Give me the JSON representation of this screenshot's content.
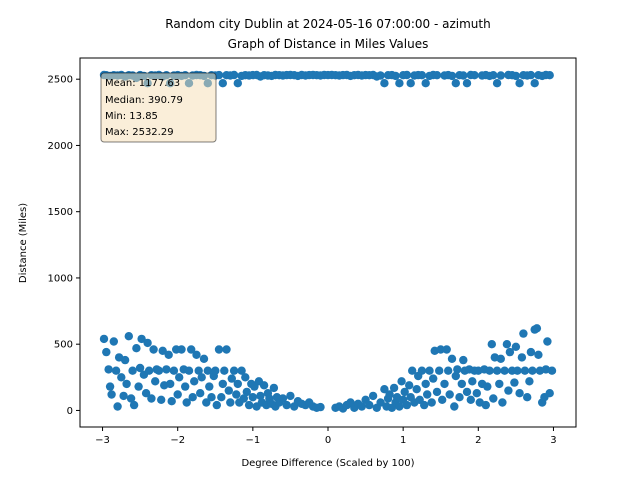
{
  "chart_data": {
    "type": "scatter",
    "title_line1": "Random city Dublin at 2024-05-16 07:00:00  - azimuth",
    "title_line2": "Graph of Distance in Miles Values",
    "xlabel": "Degree Difference (Scaled by 100)",
    "ylabel": "Distance (Miles)",
    "xlim": [
      -3.3,
      3.3
    ],
    "ylim": [
      -125,
      2660
    ],
    "xticks": [
      -3,
      -2,
      -1,
      0,
      1,
      2,
      3
    ],
    "xtick_labels": [
      "−3",
      "−2",
      "−1",
      "0",
      "1",
      "2",
      "3"
    ],
    "yticks": [
      0,
      500,
      1000,
      1500,
      2000,
      2500
    ],
    "ytick_labels": [
      "0",
      "500",
      "1000",
      "1500",
      "2000",
      "2500"
    ],
    "grid": false,
    "marker_color": "#1f77b4",
    "stats": {
      "mean": "Mean: 1177.63",
      "median": "Median: 390.79",
      "min": "Min: 13.85",
      "max": "Max: 2532.29"
    },
    "points": [
      [
        -2.98,
        2532
      ],
      [
        -2.95,
        2530
      ],
      [
        -2.9,
        2525
      ],
      [
        -2.85,
        2530
      ],
      [
        -2.8,
        2528
      ],
      [
        -2.75,
        2532
      ],
      [
        -2.7,
        2520
      ],
      [
        -2.65,
        2530
      ],
      [
        -2.6,
        2528
      ],
      [
        -2.55,
        2510
      ],
      [
        -2.5,
        2531
      ],
      [
        -2.45,
        2525
      ],
      [
        -2.4,
        2470
      ],
      [
        -2.35,
        2530
      ],
      [
        -2.3,
        2528
      ],
      [
        -2.25,
        2532
      ],
      [
        -2.2,
        2520
      ],
      [
        -2.15,
        2530
      ],
      [
        -2.1,
        2470
      ],
      [
        -2.05,
        2528
      ],
      [
        -2.0,
        2531
      ],
      [
        -1.95,
        2525
      ],
      [
        -1.9,
        2530
      ],
      [
        -1.85,
        2470
      ],
      [
        -1.8,
        2528
      ],
      [
        -1.75,
        2532
      ],
      [
        -1.7,
        2530
      ],
      [
        -1.65,
        2525
      ],
      [
        -1.6,
        2470
      ],
      [
        -1.55,
        2530
      ],
      [
        -1.5,
        2528
      ],
      [
        -1.45,
        2531
      ],
      [
        -1.4,
        2470
      ],
      [
        -1.35,
        2530
      ],
      [
        -1.3,
        2528
      ],
      [
        -1.25,
        2532
      ],
      [
        -1.2,
        2470
      ],
      [
        -1.15,
        2525
      ],
      [
        -1.1,
        2530
      ],
      [
        -1.05,
        2528
      ],
      [
        -1.0,
        2531
      ],
      [
        -0.95,
        2532
      ],
      [
        -0.9,
        2520
      ],
      [
        -0.85,
        2530
      ],
      [
        -0.8,
        2528
      ],
      [
        -0.75,
        2525
      ],
      [
        -0.7,
        2532
      ],
      [
        -0.65,
        2530
      ],
      [
        -0.6,
        2528
      ],
      [
        -0.55,
        2531
      ],
      [
        -0.5,
        2532
      ],
      [
        -0.45,
        2530
      ],
      [
        -0.4,
        2525
      ],
      [
        -0.35,
        2532
      ],
      [
        -0.3,
        2528
      ],
      [
        -0.25,
        2531
      ],
      [
        -0.2,
        2532
      ],
      [
        -0.15,
        2530
      ],
      [
        -0.1,
        2528
      ],
      [
        -0.05,
        2532
      ],
      [
        0.0,
        2531
      ],
      [
        0.05,
        2532
      ],
      [
        0.1,
        2530
      ],
      [
        0.15,
        2528
      ],
      [
        0.2,
        2531
      ],
      [
        0.25,
        2532
      ],
      [
        0.3,
        2525
      ],
      [
        0.35,
        2530
      ],
      [
        0.4,
        2532
      ],
      [
        0.45,
        2528
      ],
      [
        0.5,
        2531
      ],
      [
        0.55,
        2530
      ],
      [
        0.6,
        2532
      ],
      [
        0.65,
        2520
      ],
      [
        0.7,
        2528
      ],
      [
        0.75,
        2470
      ],
      [
        0.8,
        2530
      ],
      [
        0.85,
        2531
      ],
      [
        0.9,
        2525
      ],
      [
        0.95,
        2470
      ],
      [
        1.0,
        2530
      ],
      [
        1.05,
        2532
      ],
      [
        1.1,
        2470
      ],
      [
        1.15,
        2528
      ],
      [
        1.2,
        2531
      ],
      [
        1.25,
        2530
      ],
      [
        1.3,
        2470
      ],
      [
        1.35,
        2525
      ],
      [
        1.4,
        2532
      ],
      [
        1.45,
        2530
      ],
      [
        1.55,
        2528
      ],
      [
        1.6,
        2531
      ],
      [
        1.65,
        2525
      ],
      [
        1.7,
        2470
      ],
      [
        1.75,
        2530
      ],
      [
        1.8,
        2528
      ],
      [
        1.85,
        2470
      ],
      [
        1.9,
        2532
      ],
      [
        1.95,
        2530
      ],
      [
        2.05,
        2528
      ],
      [
        2.1,
        2531
      ],
      [
        2.15,
        2525
      ],
      [
        2.2,
        2530
      ],
      [
        2.25,
        2470
      ],
      [
        2.3,
        2528
      ],
      [
        2.4,
        2532
      ],
      [
        2.45,
        2530
      ],
      [
        2.5,
        2525
      ],
      [
        2.55,
        2470
      ],
      [
        2.6,
        2530
      ],
      [
        2.65,
        2528
      ],
      [
        2.7,
        2531
      ],
      [
        2.75,
        2470
      ],
      [
        2.8,
        2530
      ],
      [
        2.85,
        2525
      ],
      [
        2.9,
        2532
      ],
      [
        2.95,
        2530
      ],
      [
        -2.98,
        540
      ],
      [
        -2.95,
        440
      ],
      [
        -2.92,
        310
      ],
      [
        -2.9,
        180
      ],
      [
        -2.88,
        120
      ],
      [
        -2.85,
        520
      ],
      [
        -2.82,
        300
      ],
      [
        -2.8,
        30
      ],
      [
        -2.78,
        400
      ],
      [
        -2.75,
        250
      ],
      [
        -2.72,
        110
      ],
      [
        -2.7,
        380
      ],
      [
        -2.68,
        200
      ],
      [
        -2.65,
        560
      ],
      [
        -2.62,
        90
      ],
      [
        -2.6,
        300
      ],
      [
        -2.58,
        40
      ],
      [
        -2.55,
        470
      ],
      [
        -2.52,
        180
      ],
      [
        -2.5,
        320
      ],
      [
        -2.48,
        540
      ],
      [
        -2.45,
        270
      ],
      [
        -2.42,
        130
      ],
      [
        -2.4,
        510
      ],
      [
        -2.38,
        300
      ],
      [
        -2.35,
        90
      ],
      [
        -2.32,
        460
      ],
      [
        -2.3,
        220
      ],
      [
        -2.28,
        310
      ],
      [
        -2.25,
        300
      ],
      [
        -2.22,
        80
      ],
      [
        -2.2,
        450
      ],
      [
        -2.18,
        190
      ],
      [
        -2.15,
        310
      ],
      [
        -2.12,
        420
      ],
      [
        -2.1,
        200
      ],
      [
        -2.08,
        70
      ],
      [
        -2.05,
        300
      ],
      [
        -2.02,
        460
      ],
      [
        -2.0,
        120
      ],
      [
        -1.98,
        250
      ],
      [
        -1.95,
        460
      ],
      [
        -1.92,
        310
      ],
      [
        -1.9,
        180
      ],
      [
        -1.88,
        60
      ],
      [
        -1.85,
        300
      ],
      [
        -1.82,
        460
      ],
      [
        -1.8,
        100
      ],
      [
        -1.78,
        220
      ],
      [
        -1.75,
        420
      ],
      [
        -1.72,
        300
      ],
      [
        -1.7,
        130
      ],
      [
        -1.68,
        250
      ],
      [
        -1.65,
        390
      ],
      [
        -1.62,
        60
      ],
      [
        -1.6,
        300
      ],
      [
        -1.58,
        180
      ],
      [
        -1.55,
        100
      ],
      [
        -1.52,
        260
      ],
      [
        -1.5,
        300
      ],
      [
        -1.48,
        40
      ],
      [
        -1.45,
        460
      ],
      [
        -1.42,
        100
      ],
      [
        -1.4,
        200
      ],
      [
        -1.38,
        300
      ],
      [
        -1.35,
        460
      ],
      [
        -1.32,
        150
      ],
      [
        -1.3,
        60
      ],
      [
        -1.28,
        240
      ],
      [
        -1.25,
        300
      ],
      [
        -1.22,
        120
      ],
      [
        -1.2,
        200
      ],
      [
        -1.18,
        60
      ],
      [
        -1.15,
        300
      ],
      [
        -1.12,
        90
      ],
      [
        -1.1,
        250
      ],
      [
        -1.08,
        140
      ],
      [
        -1.05,
        40
      ],
      [
        -1.02,
        200
      ],
      [
        -1.0,
        100
      ],
      [
        -0.98,
        180
      ],
      [
        -0.95,
        30
      ],
      [
        -0.92,
        220
      ],
      [
        -0.9,
        110
      ],
      [
        -0.88,
        60
      ],
      [
        -0.85,
        190
      ],
      [
        -0.82,
        40
      ],
      [
        -0.8,
        130
      ],
      [
        -0.78,
        90
      ],
      [
        -0.75,
        50
      ],
      [
        -0.72,
        170
      ],
      [
        -0.7,
        30
      ],
      [
        -0.68,
        100
      ],
      [
        -0.65,
        60
      ],
      [
        -0.6,
        90
      ],
      [
        -0.55,
        40
      ],
      [
        -0.5,
        110
      ],
      [
        -0.45,
        30
      ],
      [
        -0.4,
        70
      ],
      [
        -0.35,
        50
      ],
      [
        -0.3,
        40
      ],
      [
        -0.25,
        60
      ],
      [
        -0.2,
        30
      ],
      [
        -0.15,
        20
      ],
      [
        -0.1,
        25
      ],
      [
        0.1,
        20
      ],
      [
        0.15,
        30
      ],
      [
        0.2,
        15
      ],
      [
        0.25,
        40
      ],
      [
        0.3,
        60
      ],
      [
        0.35,
        20
      ],
      [
        0.4,
        50
      ],
      [
        0.45,
        30
      ],
      [
        0.5,
        80
      ],
      [
        0.55,
        40
      ],
      [
        0.6,
        110
      ],
      [
        0.65,
        20
      ],
      [
        0.7,
        60
      ],
      [
        0.75,
        160
      ],
      [
        0.78,
        30
      ],
      [
        0.8,
        90
      ],
      [
        0.82,
        120
      ],
      [
        0.85,
        20
      ],
      [
        0.88,
        170
      ],
      [
        0.9,
        60
      ],
      [
        0.92,
        100
      ],
      [
        0.95,
        30
      ],
      [
        0.98,
        220
      ],
      [
        1.0,
        80
      ],
      [
        1.02,
        140
      ],
      [
        1.05,
        40
      ],
      [
        1.08,
        190
      ],
      [
        1.1,
        100
      ],
      [
        1.12,
        300
      ],
      [
        1.15,
        60
      ],
      [
        1.18,
        160
      ],
      [
        1.2,
        260
      ],
      [
        1.22,
        80
      ],
      [
        1.25,
        300
      ],
      [
        1.28,
        40
      ],
      [
        1.3,
        200
      ],
      [
        1.32,
        120
      ],
      [
        1.35,
        300
      ],
      [
        1.38,
        60
      ],
      [
        1.4,
        240
      ],
      [
        1.42,
        450
      ],
      [
        1.45,
        140
      ],
      [
        1.48,
        300
      ],
      [
        1.5,
        460
      ],
      [
        1.52,
        80
      ],
      [
        1.55,
        200
      ],
      [
        1.58,
        460
      ],
      [
        1.6,
        300
      ],
      [
        1.62,
        120
      ],
      [
        1.65,
        390
      ],
      [
        1.68,
        30
      ],
      [
        1.7,
        260
      ],
      [
        1.72,
        310
      ],
      [
        1.75,
        100
      ],
      [
        1.78,
        200
      ],
      [
        1.8,
        380
      ],
      [
        1.82,
        300
      ],
      [
        1.85,
        140
      ],
      [
        1.88,
        310
      ],
      [
        1.9,
        80
      ],
      [
        1.92,
        220
      ],
      [
        1.95,
        300
      ],
      [
        1.98,
        130
      ],
      [
        2.0,
        300
      ],
      [
        2.02,
        60
      ],
      [
        2.05,
        200
      ],
      [
        2.08,
        310
      ],
      [
        2.1,
        40
      ],
      [
        2.12,
        180
      ],
      [
        2.15,
        300
      ],
      [
        2.18,
        500
      ],
      [
        2.2,
        90
      ],
      [
        2.22,
        400
      ],
      [
        2.25,
        300
      ],
      [
        2.28,
        200
      ],
      [
        2.3,
        390
      ],
      [
        2.32,
        60
      ],
      [
        2.35,
        300
      ],
      [
        2.38,
        500
      ],
      [
        2.4,
        150
      ],
      [
        2.42,
        440
      ],
      [
        2.45,
        300
      ],
      [
        2.48,
        210
      ],
      [
        2.5,
        480
      ],
      [
        2.52,
        300
      ],
      [
        2.55,
        130
      ],
      [
        2.58,
        400
      ],
      [
        2.6,
        580
      ],
      [
        2.62,
        300
      ],
      [
        2.65,
        100
      ],
      [
        2.68,
        220
      ],
      [
        2.7,
        440
      ],
      [
        2.72,
        300
      ],
      [
        2.75,
        610
      ],
      [
        2.78,
        620
      ],
      [
        2.8,
        420
      ],
      [
        2.82,
        300
      ],
      [
        2.85,
        60
      ],
      [
        2.88,
        100
      ],
      [
        2.9,
        310
      ],
      [
        2.92,
        520
      ],
      [
        2.95,
        130
      ],
      [
        2.98,
        300
      ]
    ]
  }
}
